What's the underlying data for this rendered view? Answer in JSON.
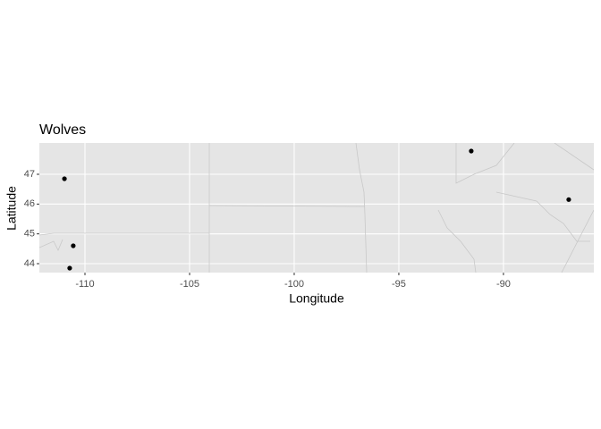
{
  "chart_data": {
    "type": "scatter",
    "title": "Wolves",
    "x_label": "Longitude",
    "y_label": "Latitude",
    "x": [
      -110.98,
      -110.56,
      -110.73,
      -91.54,
      -86.88
    ],
    "values": [
      46.85,
      44.6,
      43.85,
      47.78,
      46.15
    ],
    "color": "#000000",
    "xlim": [
      -112.18,
      -85.68
    ],
    "xticks": [
      -110,
      -105,
      -100,
      -95,
      -90
    ],
    "ylim": [
      43.7,
      48.05
    ],
    "yticks": [
      44,
      45,
      46,
      47
    ],
    "grid": true
  }
}
